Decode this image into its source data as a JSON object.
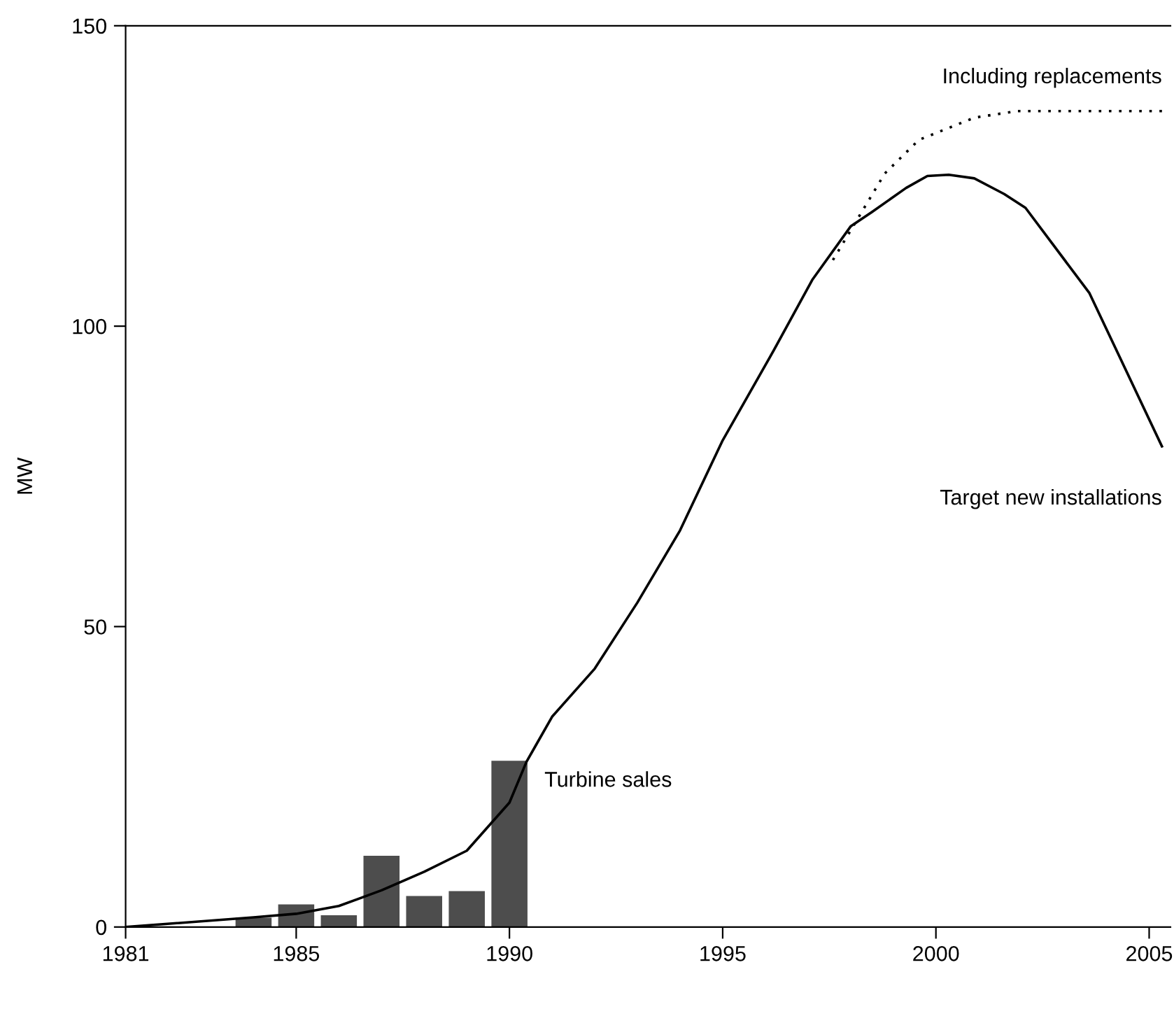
{
  "chart_data": {
    "type": "line",
    "ylabel": "MW",
    "xlim": [
      1981,
      2005.5
    ],
    "xticks": [
      1981,
      1985,
      1990,
      1995,
      2000,
      2005
    ],
    "ylim": [
      0,
      150
    ],
    "yticks": [
      0,
      50,
      100,
      150
    ],
    "grid": false,
    "legend": false,
    "marker": "none",
    "series": [
      {
        "name": "Turbine sales",
        "type": "bar",
        "color": "#4d4d4d",
        "x": [
          1984,
          1985,
          1986,
          1987,
          1988,
          1989,
          1990
        ],
        "values": [
          1.4,
          3.6,
          1.8,
          11.7,
          5,
          5.8,
          27.5
        ]
      },
      {
        "name": "Target new installations",
        "line_style": "solid",
        "color": "#000000",
        "x": [
          1981,
          1984,
          1985,
          1986,
          1987,
          1988,
          1989,
          1990,
          1990.4,
          1991,
          1992,
          1993,
          1994,
          1995,
          1996.2,
          1997.1,
          1998,
          1998.5,
          1999.3,
          1999.8,
          2000.3,
          2000.9,
          2001.6,
          2002.1,
          2003.6,
          2005.3
        ],
        "values": [
          0,
          1.6,
          2.2,
          3.5,
          6.1,
          9.2,
          12.7,
          20.7,
          27.5,
          35,
          43,
          54,
          66,
          81,
          96,
          107.7,
          116.6,
          119,
          123,
          125,
          125.2,
          124.6,
          122,
          119.7,
          105.5,
          80
        ]
      },
      {
        "name": "Including replacements",
        "line_style": "dotted",
        "color": "#000000",
        "x": [
          1997.5,
          1998.8,
          1999.6,
          2000.9,
          2001.9,
          2005.3
        ],
        "values": [
          110,
          125.4,
          131,
          134.7,
          135.8,
          135.8
        ]
      }
    ]
  }
}
